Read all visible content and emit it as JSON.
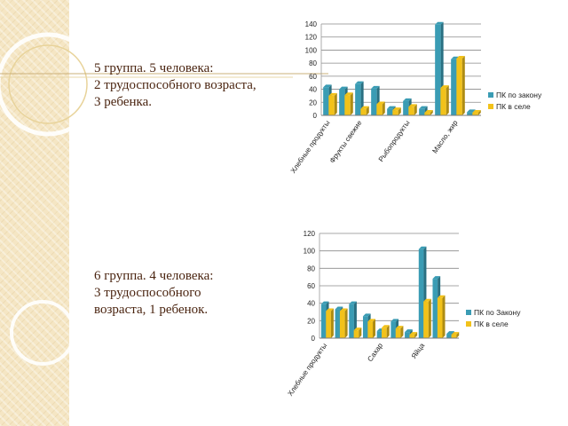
{
  "colors": {
    "series_a": "#3a9cb4",
    "series_b": "#f2c21a",
    "text_brown": "#4a2410",
    "accent_gold": "#d9b85c"
  },
  "groups": [
    {
      "heading": "5 группа. 5 человека:",
      "line2": "2 трудоспособного возраста,",
      "line3": "3 ребенка."
    },
    {
      "heading": "6 группа. 4 человека:",
      "line2": "3 трудоспособного",
      "line3": "возраста, 1 ребенок."
    }
  ],
  "chart_data": [
    {
      "type": "bar",
      "title": "",
      "xlabel": "",
      "ylabel": "",
      "ylim": [
        0,
        140
      ],
      "yticks": [
        0,
        20,
        40,
        60,
        80,
        100,
        120,
        140
      ],
      "grid": true,
      "legend_position": "right",
      "categories": [
        "Хлебные продукты",
        "",
        "Фрукты свежие",
        "",
        "",
        "Рыбопродукты",
        "",
        "",
        "Масло, жир",
        ""
      ],
      "series": [
        {
          "name": "ПК по закону",
          "values": [
            43,
            40,
            48,
            41,
            10,
            22,
            10,
            139,
            86,
            5
          ]
        },
        {
          "name": "ПК в селе",
          "values": [
            30,
            31,
            10,
            17,
            8,
            13,
            4,
            42,
            87,
            4
          ]
        }
      ]
    },
    {
      "type": "bar",
      "title": "",
      "xlabel": "",
      "ylabel": "",
      "ylim": [
        0,
        120
      ],
      "yticks": [
        0,
        20,
        40,
        60,
        80,
        100,
        120
      ],
      "grid": true,
      "legend_position": "right",
      "categories": [
        "Хлебные продукты",
        "",
        "",
        "",
        "Сахар",
        "",
        "",
        "Яйца",
        "",
        ""
      ],
      "series": [
        {
          "name": "ПК по Закону",
          "values": [
            39,
            33,
            39,
            25,
            8,
            19,
            7,
            102,
            68,
            5
          ]
        },
        {
          "name": "ПК в селе",
          "values": [
            31,
            31,
            9,
            19,
            12,
            11,
            4,
            42,
            46,
            4
          ]
        }
      ]
    }
  ]
}
